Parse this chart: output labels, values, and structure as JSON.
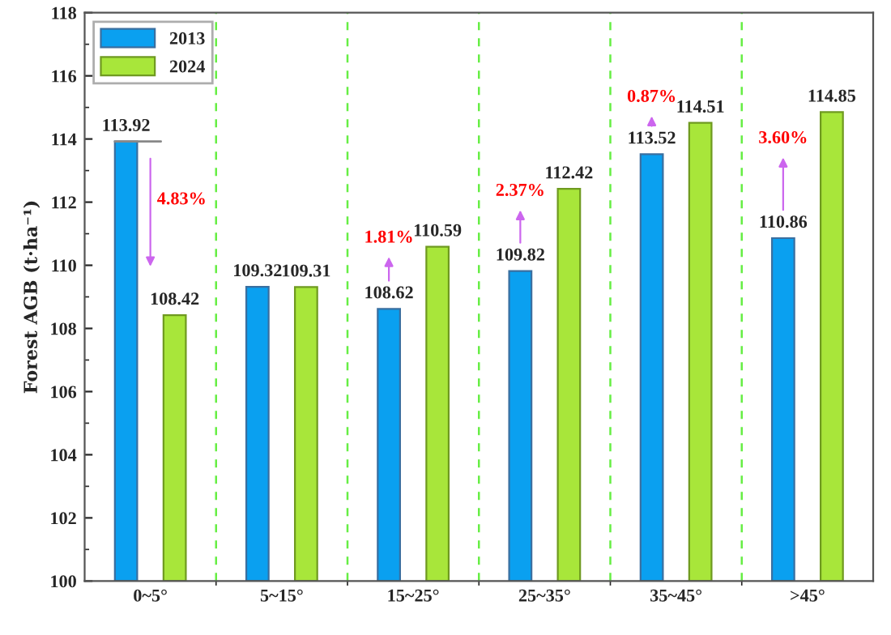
{
  "chart_data": {
    "type": "bar",
    "ylabel": "Forest AGB (t·ha⁻¹)",
    "categories": [
      "0~5°",
      "5~15°",
      "15~25°",
      "25~35°",
      "35~45°",
      ">45°"
    ],
    "series": [
      {
        "name": "2013",
        "color": "#0aa0f0",
        "values": [
          113.92,
          109.32,
          108.62,
          109.82,
          113.52,
          110.86
        ]
      },
      {
        "name": "2024",
        "color": "#a8e63a",
        "values": [
          108.42,
          109.31,
          110.59,
          112.42,
          114.51,
          114.85
        ]
      }
    ],
    "ylim": [
      100,
      118
    ],
    "yticks": [
      100,
      102,
      104,
      106,
      108,
      110,
      112,
      114,
      116,
      118
    ],
    "data_labels": true,
    "grid": "x",
    "legend": "top left",
    "annotations": [
      "4.83%",
      "1.81%",
      "2.37%",
      "0.87%",
      "3.60%"
    ]
  }
}
